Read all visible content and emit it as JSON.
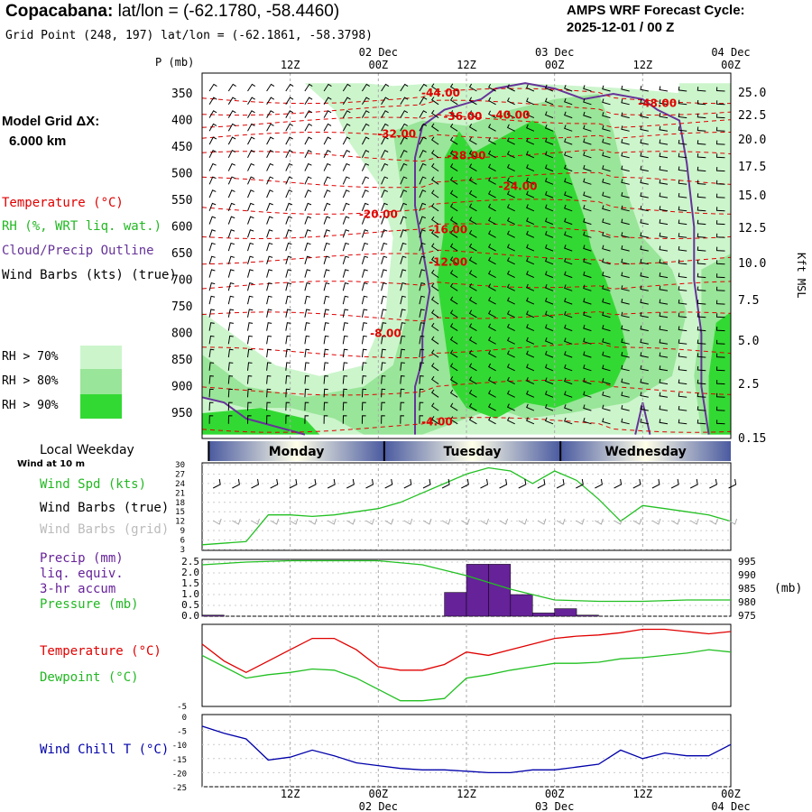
{
  "header": {
    "location": "Copacabana:",
    "latlon_label": "lat/lon = (-62.1780, -58.4460)",
    "grid_point": "Grid Point (248, 197) lat/lon = (-62.1861, -58.3798)",
    "model_title": "AMPS WRF Forecast Cycle:",
    "cycle": "2025-12-01 / 00  Z"
  },
  "sidebar": {
    "model_grid_label": "Model Grid ΔX:",
    "model_grid_value": "6.000 km",
    "legend_temperature": "Temperature (°C)",
    "legend_rh": "RH (%, WRT liq. wat.)",
    "legend_cloud": "Cloud/Precip Outline",
    "legend_wind": "Wind Barbs (kts) (true)",
    "rh_levels": [
      "RH > 70%",
      "RH > 80%",
      "RH > 90%"
    ],
    "local_weekday": "Local Weekday",
    "wind_at": "Wind at 10 m",
    "wind_spd": "Wind Spd (kts)",
    "wind_barbs_true": "Wind Barbs (true)",
    "wind_barbs_grid": "Wind Barbs (grid)",
    "precip1": "Precip (mm)",
    "precip2": "liq. equiv.",
    "precip3": "3-hr accum",
    "pressure": "Pressure (mb)",
    "temperature": "Temperature (°C)",
    "dewpoint": "Dewpoint (°C)",
    "windchill": "Wind Chill T (°C)"
  },
  "colors": {
    "rh70": "#ccf5cc",
    "rh80": "#99e599",
    "rh90": "#33d933",
    "temp": "#e00000",
    "dew": "#22c022",
    "cloud": "#663399",
    "precip": "#662299",
    "windchill": "#0000aa"
  },
  "chart_data": [
    {
      "type": "contour",
      "name": "cross-section",
      "y_label": "P (mb)",
      "right_label": "Kft MSL",
      "pressure_levels": [
        "350",
        "400",
        "450",
        "500",
        "550",
        "600",
        "650",
        "700",
        "750",
        "800",
        "850",
        "900",
        "950"
      ],
      "height_levels": [
        "25.0",
        "22.5",
        "20.0",
        "17.5",
        "15.0",
        "12.5",
        "10.0",
        "7.5",
        "5.0",
        "2.5",
        "0.15"
      ],
      "time_top_labels": [
        {
          "t": 12,
          "label": "12Z",
          "date": ""
        },
        {
          "t": 24,
          "label": "00Z",
          "date": "02 Dec"
        },
        {
          "t": 36,
          "label": "12Z",
          "date": ""
        },
        {
          "t": 48,
          "label": "00Z",
          "date": "03 Dec"
        },
        {
          "t": 60,
          "label": "12Z",
          "date": ""
        },
        {
          "t": 72,
          "label": "00Z",
          "date": "04 Dec"
        }
      ],
      "temp_labels": [
        {
          "text": "-44.00",
          "t": 32.5,
          "p": 348
        },
        {
          "text": "-48.00",
          "t": 62,
          "p": 368
        },
        {
          "text": "-36.00",
          "t": 35.5,
          "p": 392
        },
        {
          "text": "-40.00",
          "t": 42,
          "p": 390
        },
        {
          "text": "-32.00",
          "t": 26.5,
          "p": 425
        },
        {
          "text": "-28.00",
          "t": 36,
          "p": 466
        },
        {
          "text": "-24.00",
          "t": 43,
          "p": 524
        },
        {
          "text": "-20.00",
          "t": 24,
          "p": 576
        },
        {
          "text": "-16.00",
          "t": 33.5,
          "p": 605
        },
        {
          "text": "-12.00",
          "t": 33.5,
          "p": 666
        },
        {
          "text": "-8.00",
          "t": 25,
          "p": 800
        },
        {
          "text": "-4.00",
          "t": 32,
          "p": 966
        }
      ]
    },
    {
      "type": "line",
      "name": "wind-speed",
      "weekdays": [
        "Monday",
        "Tuesday",
        "Wednesday"
      ],
      "y_ticks": [
        "30",
        "27",
        "24",
        "21",
        "18",
        "15",
        "12",
        "9",
        "6",
        "3"
      ],
      "ylim": [
        3,
        30
      ],
      "x": [
        0,
        6,
        9,
        12,
        15,
        18,
        21,
        24,
        27,
        30,
        33,
        36,
        39,
        42,
        45,
        48,
        51,
        54,
        57,
        60,
        63,
        66,
        69,
        72
      ],
      "values": [
        4.5,
        5.5,
        14,
        14,
        13.5,
        14,
        15,
        16,
        18,
        21,
        24,
        27,
        29,
        28,
        24,
        28,
        25,
        19,
        12,
        17,
        16,
        15,
        14,
        12
      ]
    },
    {
      "type": "bar",
      "name": "precip-pressure",
      "y_ticks_left": [
        "2.5",
        "2.0",
        "1.5",
        "1.0",
        "0.5",
        "0.0"
      ],
      "y_ticks_right": [
        "995",
        "990",
        "985",
        "980",
        "975"
      ],
      "right_label": "(mb)",
      "precip_t_start": [
        0,
        33,
        36,
        39,
        42,
        45,
        48,
        51
      ],
      "precip_values": [
        0.05,
        1.1,
        2.4,
        2.4,
        1.0,
        0.15,
        0.35,
        0.05
      ],
      "pressure_x": [
        0,
        6,
        12,
        18,
        24,
        30,
        36,
        42,
        48,
        54,
        60,
        66,
        72
      ],
      "pressure_values": [
        994,
        995,
        995.5,
        995.5,
        995.5,
        994,
        990,
        985,
        981,
        980.5,
        980.5,
        981,
        981
      ],
      "ylim_left": [
        0,
        2.5
      ],
      "ylim_right": [
        975,
        995
      ]
    },
    {
      "type": "line",
      "name": "temperature-dewpoint",
      "y_min_label": "-5",
      "ylim": [
        -5,
        2
      ],
      "temp_x": [
        0,
        3,
        6,
        9,
        12,
        15,
        18,
        21,
        24,
        27,
        30,
        33,
        36,
        39,
        42,
        45,
        48,
        51,
        54,
        57,
        60,
        63,
        66,
        69,
        72
      ],
      "temp_values": [
        0.5,
        -1,
        -2,
        -1,
        0,
        1,
        1,
        0,
        -1.5,
        -1.8,
        -1.8,
        -1.3,
        -0.2,
        -0.5,
        0,
        0.5,
        1,
        1.2,
        1.3,
        1.5,
        1.8,
        1.8,
        1.6,
        1.4,
        1.6
      ],
      "dew_x": [
        0,
        3,
        6,
        9,
        12,
        15,
        18,
        21,
        24,
        27,
        30,
        33,
        36,
        39,
        42,
        45,
        48,
        51,
        54,
        57,
        60,
        63,
        66,
        69,
        72
      ],
      "dew_values": [
        -0.5,
        -1.5,
        -2.5,
        -2.2,
        -2,
        -1.7,
        -1.8,
        -2.5,
        -3.5,
        -4.5,
        -4.5,
        -4.3,
        -2.5,
        -2.2,
        -1.8,
        -1.5,
        -1.2,
        -1.2,
        -1.1,
        -0.8,
        -0.7,
        -0.5,
        -0.3,
        0,
        -0.2
      ]
    },
    {
      "type": "line",
      "name": "wind-chill",
      "y_ticks": [
        "-5",
        "-10",
        "-15",
        "-20",
        "-25"
      ],
      "y_extra": "0",
      "ylim": [
        -25,
        0
      ],
      "x": [
        0,
        3,
        6,
        9,
        12,
        15,
        18,
        21,
        24,
        27,
        30,
        33,
        36,
        39,
        42,
        45,
        48,
        51,
        54,
        57,
        60,
        63,
        66,
        69,
        72
      ],
      "values": [
        -3.5,
        -6,
        -8,
        -15.5,
        -14.5,
        -12,
        -14,
        -16.5,
        -17.5,
        -18.5,
        -19,
        -19,
        -19.5,
        -20,
        -20,
        -19,
        -19,
        -18,
        -17,
        -12,
        -15,
        -13,
        -14,
        -14,
        -10
      ],
      "bottom_labels": [
        {
          "t": 12,
          "label": "12Z",
          "date": ""
        },
        {
          "t": 24,
          "label": "00Z",
          "date": "02 Dec"
        },
        {
          "t": 36,
          "label": "12Z",
          "date": ""
        },
        {
          "t": 48,
          "label": "00Z",
          "date": "03 Dec"
        },
        {
          "t": 60,
          "label": "12Z",
          "date": ""
        },
        {
          "t": 72,
          "label": "00Z",
          "date": "04 Dec"
        }
      ]
    }
  ]
}
